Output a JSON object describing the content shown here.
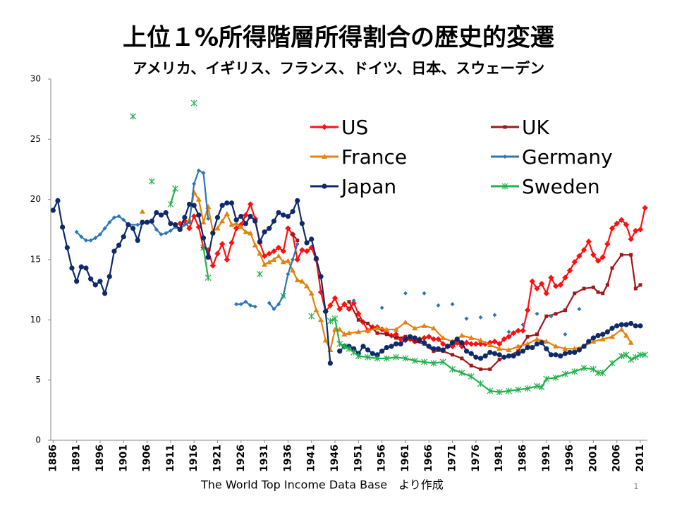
{
  "chart_data": {
    "type": "line",
    "title": "上位１%所得階層所得割合の歴史的変遷",
    "subtitle": "アメリカ、イギリス、フランス、ドイツ、日本、スウェーデン",
    "source": "The World Top Income Data Base　より作成",
    "page_number": "1",
    "xlim": [
      1885.5,
      2012.5
    ],
    "xticks": [
      1886,
      1891,
      1896,
      1901,
      1906,
      1911,
      1916,
      1921,
      1926,
      1931,
      1936,
      1941,
      1946,
      1951,
      1956,
      1961,
      1966,
      1971,
      1976,
      1981,
      1986,
      1991,
      1996,
      2001,
      2006,
      2011
    ],
    "ylim": [
      0,
      30
    ],
    "yticks": [
      0,
      5,
      10,
      15,
      20,
      25,
      30
    ],
    "series": [
      {
        "name": "US",
        "color": "#ff1010",
        "marker": "diamond",
        "x": [
          1913,
          1914,
          1915,
          1916,
          1917,
          1918,
          1919,
          1920,
          1921,
          1922,
          1923,
          1924,
          1925,
          1926,
          1927,
          1928,
          1929,
          1930,
          1931,
          1932,
          1933,
          1934,
          1935,
          1936,
          1937,
          1938,
          1939,
          1940,
          1941,
          1942,
          1943,
          1944,
          1945,
          1946,
          1947,
          1948,
          1949,
          1950,
          1951,
          1952,
          1953,
          1954,
          1955,
          1956,
          1957,
          1958,
          1959,
          1960,
          1961,
          1962,
          1963,
          1964,
          1965,
          1966,
          1967,
          1968,
          1969,
          1970,
          1971,
          1972,
          1973,
          1974,
          1975,
          1976,
          1977,
          1978,
          1979,
          1980,
          1981,
          1982,
          1983,
          1984,
          1985,
          1986,
          1987,
          1988,
          1989,
          1990,
          1991,
          1992,
          1993,
          1994,
          1995,
          1996,
          1997,
          1998,
          1999,
          2000,
          2001,
          2002,
          2003,
          2004,
          2005,
          2006,
          2007,
          2008,
          2009,
          2010,
          2011,
          2012
        ],
        "values": [
          18.0,
          18.2,
          17.6,
          18.6,
          17.7,
          16.0,
          15.8,
          14.5,
          15.5,
          16.3,
          15.0,
          16.4,
          17.6,
          17.9,
          18.7,
          19.6,
          18.4,
          16.4,
          15.3,
          15.5,
          15.7,
          16.0,
          15.7,
          17.6,
          17.1,
          15.0,
          15.8,
          15.7,
          16.0,
          15.0,
          12.3,
          10.7,
          11.2,
          11.8,
          10.9,
          11.3,
          10.9,
          11.4,
          10.5,
          9.8,
          9.1,
          9.4,
          9.4,
          9.2,
          8.9,
          8.7,
          8.8,
          8.4,
          8.3,
          8.4,
          8.2,
          8.4,
          8.5,
          8.6,
          8.4,
          8.4,
          8.0,
          7.8,
          7.8,
          8.1,
          7.8,
          8.1,
          8.0,
          8.0,
          8.0,
          8.0,
          8.1,
          8.2,
          8.0,
          8.4,
          8.6,
          8.9,
          9.1,
          9.1,
          10.8,
          13.2,
          12.6,
          13.0,
          12.2,
          13.5,
          12.8,
          12.9,
          13.5,
          14.1,
          14.8,
          15.3,
          15.8,
          16.5,
          15.4,
          14.9,
          15.2,
          16.3,
          17.6,
          18.0,
          18.3,
          17.9,
          16.7,
          17.4,
          17.5,
          19.3
        ]
      },
      {
        "name": "UK",
        "color": "#a0181c",
        "marker": "square",
        "x": [
          1937,
          1938,
          1939,
          1949,
          1951,
          1953,
          1955,
          1957,
          1959,
          1961,
          1963,
          1965,
          1967,
          1969,
          1971,
          1973,
          1975,
          1977,
          1979,
          1981,
          1983,
          1985,
          1987,
          1989,
          1991,
          1993,
          1995,
          1997,
          1999,
          2001,
          2002,
          2003,
          2004,
          2005,
          2007,
          2009,
          2010,
          2011
        ],
        "values": [
          17.1,
          16.6,
          null,
          11.5,
          10.0,
          9.7,
          8.9,
          8.8,
          8.5,
          8.6,
          8.2,
          8.0,
          7.4,
          7.4,
          7.1,
          6.8,
          6.2,
          5.9,
          5.9,
          6.7,
          7.0,
          7.4,
          8.6,
          8.8,
          10.3,
          10.5,
          10.8,
          12.2,
          12.6,
          12.7,
          12.3,
          12.2,
          12.9,
          14.3,
          15.4,
          15.4,
          12.6,
          12.9
        ]
      },
      {
        "name": "France",
        "color": "#e3820f",
        "marker": "triangle",
        "x": [
          1905,
          1910,
          1915,
          1916,
          1917,
          1918,
          1919,
          1920,
          1921,
          1922,
          1923,
          1924,
          1925,
          1926,
          1927,
          1928,
          1929,
          1930,
          1931,
          1932,
          1933,
          1934,
          1935,
          1936,
          1937,
          1938,
          1939,
          1940,
          1941,
          1942,
          1943,
          1944,
          1945,
          1946,
          1947,
          1948,
          1949,
          1951,
          1953,
          1955,
          1957,
          1959,
          1961,
          1963,
          1965,
          1967,
          1969,
          1971,
          1973,
          1975,
          1977,
          1979,
          1981,
          1983,
          1985,
          1987,
          1989,
          1991,
          1993,
          1995,
          1997,
          1999,
          2001,
          2003,
          2005,
          2007,
          2008,
          2009
        ],
        "values": [
          19.0,
          null,
          18.3,
          20.6,
          20.0,
          18.1,
          19.4,
          17.4,
          17.6,
          18.2,
          18.8,
          17.9,
          18.0,
          17.7,
          17.3,
          17.2,
          16.2,
          15.5,
          14.6,
          14.8,
          15.0,
          15.3,
          14.8,
          14.9,
          14.1,
          13.3,
          13.2,
          12.8,
          12.2,
          10.8,
          10.0,
          8.3,
          7.5,
          9.2,
          9.2,
          8.8,
          8.9,
          9.0,
          9.1,
          9.3,
          9.2,
          9.2,
          9.8,
          9.3,
          9.5,
          9.3,
          8.5,
          8.2,
          8.7,
          8.5,
          8.3,
          7.9,
          7.6,
          7.5,
          7.8,
          8.0,
          8.4,
          8.2,
          7.8,
          7.6,
          7.6,
          7.8,
          8.2,
          8.4,
          8.6,
          9.2,
          8.7,
          8.1
        ]
      },
      {
        "name": "Germany",
        "color": "#2e75b6",
        "marker": "diamond-small",
        "x": [
          1891,
          1892,
          1893,
          1894,
          1895,
          1896,
          1897,
          1898,
          1899,
          1900,
          1901,
          1902,
          1904,
          1906,
          1907,
          1908,
          1909,
          1910,
          1911,
          1912,
          1913,
          1914,
          1915,
          1916,
          1917,
          1918,
          1919,
          1920,
          1925,
          1926,
          1927,
          1928,
          1929,
          1930,
          1932,
          1933,
          1934,
          1935,
          1936,
          1937,
          1938,
          1939,
          1950,
          1951,
          1956,
          1957,
          1961,
          1962,
          1965,
          1966,
          1968,
          1969,
          1971,
          1972,
          1974,
          1975,
          1977,
          1978,
          1980,
          1981,
          1983,
          1984,
          1986,
          1987,
          1989,
          1990,
          1992,
          1993,
          1995,
          1996,
          1998
        ],
        "values": [
          17.3,
          16.9,
          16.6,
          16.6,
          16.8,
          17.1,
          17.6,
          18.1,
          18.5,
          18.6,
          18.3,
          17.9,
          17.9,
          18.1,
          18.1,
          17.5,
          17.1,
          17.2,
          17.4,
          17.7,
          17.5,
          17.9,
          18.1,
          21.3,
          22.4,
          22.2,
          18.4,
          null,
          11.3,
          11.3,
          11.5,
          11.2,
          11.1,
          null,
          11.4,
          10.9,
          11.3,
          12.0,
          13.8,
          15.0,
          16.3,
          null,
          11.6,
          null,
          11.0,
          null,
          12.2,
          null,
          12.2,
          null,
          11.2,
          null,
          11.3,
          null,
          10.1,
          null,
          10.2,
          null,
          10.4,
          null,
          9.0,
          null,
          9.6,
          null,
          10.5,
          null,
          10.3,
          null,
          8.8,
          null,
          10.9
        ]
      },
      {
        "name": "Japan",
        "color": "#0f2a6b",
        "marker": "circle",
        "x": [
          1886,
          1887,
          1888,
          1889,
          1890,
          1891,
          1892,
          1893,
          1894,
          1895,
          1896,
          1897,
          1898,
          1899,
          1900,
          1901,
          1902,
          1903,
          1904,
          1905,
          1906,
          1907,
          1908,
          1909,
          1910,
          1911,
          1912,
          1913,
          1914,
          1915,
          1916,
          1917,
          1918,
          1919,
          1920,
          1921,
          1922,
          1923,
          1924,
          1925,
          1926,
          1927,
          1928,
          1929,
          1930,
          1931,
          1932,
          1933,
          1934,
          1935,
          1936,
          1937,
          1938,
          1939,
          1940,
          1941,
          1942,
          1943,
          1944,
          1945,
          1946,
          1947,
          1948,
          1949,
          1950,
          1951,
          1952,
          1953,
          1954,
          1955,
          1956,
          1957,
          1958,
          1959,
          1960,
          1961,
          1962,
          1963,
          1964,
          1965,
          1966,
          1967,
          1968,
          1969,
          1970,
          1971,
          1972,
          1973,
          1974,
          1975,
          1976,
          1977,
          1978,
          1979,
          1980,
          1981,
          1982,
          1983,
          1984,
          1985,
          1986,
          1987,
          1988,
          1989,
          1990,
          1991,
          1992,
          1993,
          1994,
          1995,
          1996,
          1997,
          1998,
          1999,
          2000,
          2001,
          2002,
          2003,
          2004,
          2005,
          2006,
          2007,
          2008,
          2009,
          2010,
          2011
        ],
        "values": [
          19.1,
          19.9,
          17.7,
          16.0,
          14.3,
          13.2,
          14.4,
          14.3,
          13.4,
          12.9,
          13.2,
          12.2,
          13.6,
          15.7,
          16.2,
          16.9,
          17.9,
          17.6,
          16.6,
          18.1,
          18.1,
          18.2,
          18.9,
          18.7,
          18.9,
          18.0,
          17.9,
          17.5,
          18.5,
          19.6,
          19.5,
          18.7,
          16.8,
          15.2,
          17.2,
          18.5,
          19.5,
          19.7,
          19.7,
          18.3,
          18.6,
          18.0,
          18.6,
          18.2,
          16.5,
          17.3,
          17.6,
          18.2,
          18.9,
          18.7,
          18.6,
          19.0,
          19.9,
          18.0,
          16.4,
          16.7,
          15.1,
          13.6,
          10.7,
          6.4,
          null,
          7.4,
          7.8,
          7.8,
          7.6,
          7.2,
          7.8,
          7.5,
          7.2,
          7.1,
          7.4,
          7.7,
          7.8,
          8.0,
          8.0,
          8.4,
          8.6,
          8.5,
          8.3,
          8.1,
          7.8,
          7.6,
          7.6,
          7.5,
          7.8,
          8.1,
          8.4,
          8.1,
          7.4,
          7.2,
          6.9,
          6.8,
          7.0,
          7.3,
          7.2,
          7.1,
          6.9,
          7.0,
          7.0,
          7.2,
          7.4,
          7.7,
          7.7,
          8.0,
          8.1,
          7.6,
          7.1,
          7.1,
          7.0,
          7.2,
          7.3,
          7.3,
          7.5,
          7.8,
          8.2,
          8.5,
          8.7,
          8.8,
          9.0,
          9.3,
          9.5,
          9.6,
          9.6,
          9.7,
          9.5,
          9.5
        ]
      },
      {
        "name": "Sweden",
        "color": "#22b14c",
        "marker": "asterisk",
        "x": [
          1903,
          1904,
          1907,
          1908,
          1911,
          1912,
          1913,
          1916,
          1917,
          1918,
          1919,
          1920,
          1930,
          1931,
          1935,
          1936,
          1941,
          1942,
          1945,
          1946,
          1947,
          1948,
          1949,
          1950,
          1951,
          1953,
          1955,
          1957,
          1959,
          1961,
          1963,
          1965,
          1967,
          1969,
          1971,
          1973,
          1975,
          1977,
          1979,
          1981,
          1983,
          1985,
          1987,
          1989,
          1990,
          1991,
          1993,
          1995,
          1997,
          1999,
          2001,
          2002,
          2003,
          2005,
          2007,
          2008,
          2009,
          2010,
          2011,
          2012
        ],
        "values": [
          26.9,
          null,
          21.5,
          null,
          19.6,
          20.9,
          null,
          28.0,
          null,
          16.0,
          13.5,
          null,
          13.8,
          null,
          12.0,
          null,
          10.3,
          null,
          9.9,
          10.1,
          8.0,
          7.8,
          7.6,
          7.3,
          7.0,
          6.9,
          6.8,
          6.8,
          6.9,
          6.8,
          6.6,
          6.5,
          6.4,
          6.5,
          5.9,
          5.6,
          5.3,
          4.7,
          4.1,
          4.0,
          4.1,
          4.2,
          4.3,
          4.5,
          4.4,
          5.1,
          5.2,
          5.5,
          5.7,
          6.0,
          5.9,
          5.6,
          5.6,
          6.4,
          7.0,
          7.1,
          6.7,
          6.9,
          7.1,
          7.1
        ]
      }
    ]
  }
}
